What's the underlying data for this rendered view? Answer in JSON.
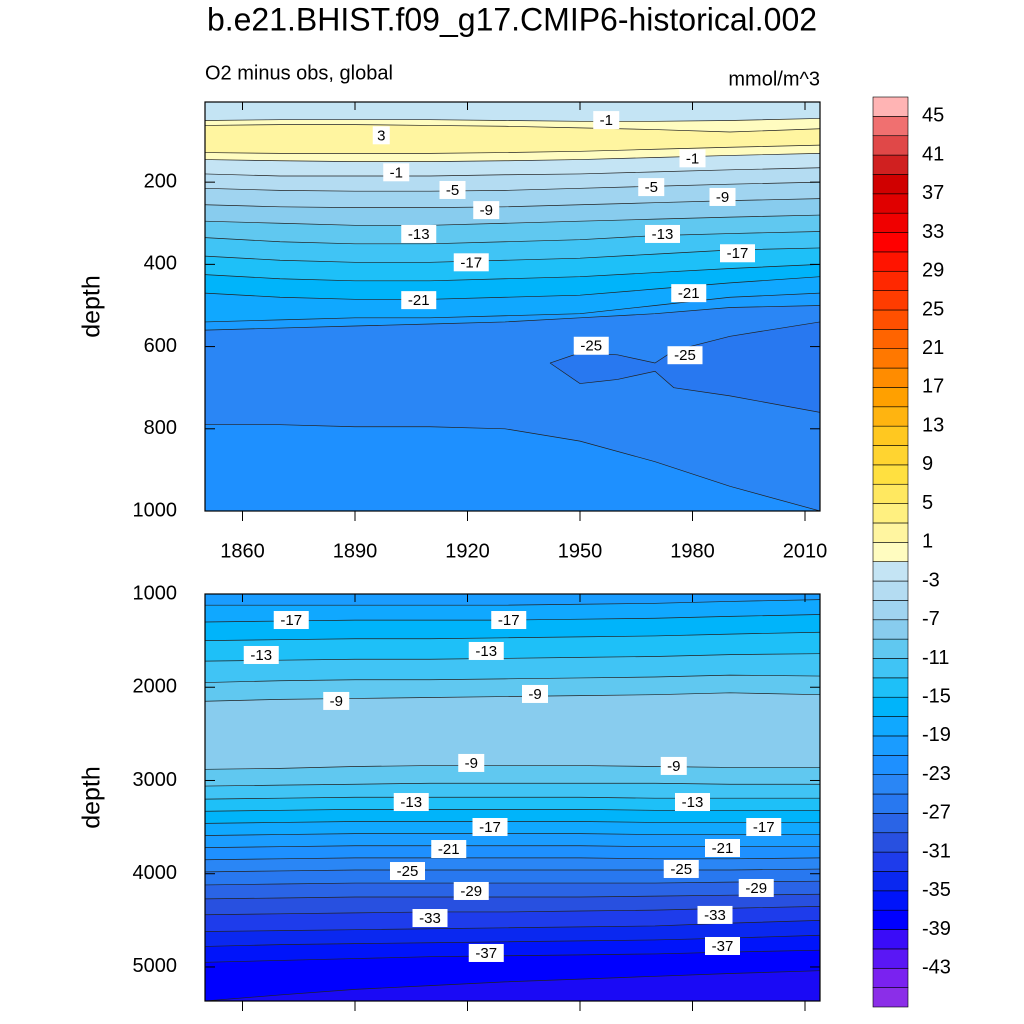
{
  "title": "b.e21.BHIST.f09_g17.CMIP6-historical.002",
  "colorbar": {
    "clim": [
      -47,
      47
    ],
    "colors": [
      "#8b2ee8",
      "#7a22f0",
      "#5a17f5",
      "#3a0cf8",
      "#0000ff",
      "#0014fa",
      "#0a28f0",
      "#1e3ceb",
      "#2850e0",
      "#2a64e6",
      "#2878f0",
      "#2a86f5",
      "#1e90ff",
      "#1a9cff",
      "#10a8ff",
      "#00b4fa",
      "#1ec0f8",
      "#40c4f5",
      "#60c8f0",
      "#88ccee",
      "#a0d4f0",
      "#b4dcf2",
      "#c4e4f4",
      "#fffcc0",
      "#fff5a0",
      "#fff080",
      "#ffe860",
      "#ffe040",
      "#ffd430",
      "#ffc820",
      "#ffb410",
      "#ffa000",
      "#ff8c00",
      "#ff7800",
      "#ff6400",
      "#ff5000",
      "#ff3c00",
      "#ff2800",
      "#ff1400",
      "#ff0000",
      "#f00000",
      "#e00000",
      "#d00000",
      "#d02020",
      "#e04848",
      "#f07070",
      "#ffb4b4"
    ],
    "ticks": [
      45,
      41,
      37,
      33,
      29,
      25,
      21,
      17,
      13,
      9,
      5,
      1,
      -3,
      -7,
      -11,
      -15,
      -19,
      -23,
      -27,
      -31,
      -35,
      -39,
      -43
    ]
  },
  "chart_data": [
    {
      "type": "contour",
      "subtitle": "O2 minus obs, global",
      "units": "mmol/m^3",
      "ylabel": "depth",
      "xlim": [
        1850,
        2014
      ],
      "ylim": [
        5,
        1000
      ],
      "y_reversed": true,
      "xticks": [
        1860,
        1890,
        1920,
        1950,
        1980,
        2010
      ],
      "yticks": [
        200,
        400,
        600,
        800,
        1000
      ],
      "show_xtick_labels": true,
      "x": [
        1850,
        1870,
        1890,
        1910,
        1930,
        1950,
        1970,
        1990,
        2014
      ],
      "regions": [
        {
          "color": "#c4e4f4",
          "top": [
            5,
            5,
            5,
            5,
            5,
            5,
            5,
            5,
            5
          ]
        },
        {
          "color": "#fffcc0",
          "top": [
            50,
            48,
            48,
            48,
            50,
            52,
            52,
            50,
            45
          ]
        },
        {
          "color": "#fff5a0",
          "top": [
            62,
            60,
            60,
            62,
            64,
            68,
            72,
            78,
            70
          ]
        },
        {
          "color": "#fffcc0",
          "top": [
            128,
            130,
            130,
            130,
            128,
            125,
            120,
            115,
            110
          ]
        },
        {
          "color": "#c4e4f4",
          "top": [
            145,
            148,
            150,
            150,
            148,
            145,
            140,
            135,
            130
          ]
        },
        {
          "color": "#b4dcf2",
          "top": [
            180,
            185,
            185,
            185,
            182,
            180,
            175,
            170,
            165
          ]
        },
        {
          "color": "#a0d4f0",
          "top": [
            215,
            220,
            222,
            222,
            220,
            215,
            210,
            205,
            200
          ]
        },
        {
          "color": "#88ccee",
          "top": [
            255,
            260,
            262,
            262,
            260,
            255,
            250,
            245,
            240
          ]
        },
        {
          "color": "#60c8f0",
          "top": [
            295,
            300,
            305,
            305,
            300,
            295,
            290,
            285,
            280
          ]
        },
        {
          "color": "#40c4f5",
          "top": [
            335,
            345,
            350,
            350,
            345,
            340,
            330,
            325,
            320
          ]
        },
        {
          "color": "#1ec0f8",
          "top": [
            380,
            390,
            395,
            395,
            390,
            385,
            375,
            365,
            360
          ]
        },
        {
          "color": "#00b4fa",
          "top": [
            425,
            435,
            440,
            440,
            435,
            430,
            420,
            410,
            400
          ]
        },
        {
          "color": "#10a8ff",
          "top": [
            470,
            480,
            485,
            485,
            480,
            475,
            460,
            445,
            430
          ]
        },
        {
          "color": "#1a9cff",
          "top": [
            540,
            535,
            530,
            530,
            525,
            520,
            500,
            480,
            470
          ]
        },
        {
          "color": "#2a86f5",
          "top": [
            560,
            555,
            550,
            545,
            540,
            530,
            520,
            505,
            500
          ]
        },
        {
          "color": "#1e90ff",
          "top": [
            790,
            790,
            795,
            795,
            800,
            830,
            880,
            940,
            1000
          ]
        },
        {
          "color": "#2878f0",
          "x": [
            1942,
            1950,
            1960,
            1970,
            1975,
            1990,
            2014
          ],
          "top": [
            640,
            615,
            620,
            640,
            610,
            575,
            540
          ],
          "bottom": [
            640,
            690,
            680,
            660,
            700,
            720,
            760
          ]
        }
      ],
      "contour_labels": [
        {
          "value": 3,
          "x": 1897,
          "y": 86
        },
        {
          "value": -1,
          "x": 1957,
          "y": 49
        },
        {
          "value": -1,
          "x": 1980,
          "y": 142
        },
        {
          "value": -1,
          "x": 1901,
          "y": 176
        },
        {
          "value": -5,
          "x": 1916,
          "y": 219
        },
        {
          "value": -5,
          "x": 1969,
          "y": 212
        },
        {
          "value": -9,
          "x": 1925,
          "y": 268
        },
        {
          "value": -9,
          "x": 1988,
          "y": 236
        },
        {
          "value": -13,
          "x": 1907,
          "y": 326
        },
        {
          "value": -13,
          "x": 1972,
          "y": 326
        },
        {
          "value": -17,
          "x": 1921,
          "y": 395
        },
        {
          "value": -17,
          "x": 1992,
          "y": 373
        },
        {
          "value": -21,
          "x": 1907,
          "y": 487
        },
        {
          "value": -21,
          "x": 1979,
          "y": 470
        },
        {
          "value": -25,
          "x": 1953,
          "y": 598
        },
        {
          "value": -25,
          "x": 1978,
          "y": 621
        }
      ]
    },
    {
      "type": "contour",
      "ylabel": "depth",
      "xlim": [
        1850,
        2014
      ],
      "ylim": [
        1000,
        5365
      ],
      "y_reversed": true,
      "xticks": [
        1860,
        1890,
        1920,
        1950,
        1980,
        2010
      ],
      "yticks": [
        1000,
        2000,
        3000,
        4000,
        5000
      ],
      "show_xtick_labels": false,
      "x": [
        1850,
        1870,
        1890,
        1910,
        1930,
        1950,
        1970,
        1990,
        2014
      ],
      "regions": [
        {
          "color": "#1a9cff",
          "top": [
            1000,
            1000,
            1000,
            1000,
            1000,
            1000,
            1000,
            1000,
            1000
          ]
        },
        {
          "color": "#10a8ff",
          "top": [
            1120,
            1120,
            1120,
            1120,
            1120,
            1110,
            1100,
            1080,
            1060
          ]
        },
        {
          "color": "#00b4fa",
          "top": [
            1300,
            1290,
            1280,
            1280,
            1280,
            1270,
            1260,
            1240,
            1220
          ]
        },
        {
          "color": "#1ec0f8",
          "top": [
            1500,
            1490,
            1480,
            1480,
            1470,
            1460,
            1450,
            1430,
            1410
          ]
        },
        {
          "color": "#40c4f5",
          "top": [
            1720,
            1710,
            1700,
            1700,
            1690,
            1680,
            1670,
            1650,
            1640
          ]
        },
        {
          "color": "#60c8f0",
          "top": [
            1950,
            1930,
            1920,
            1920,
            1910,
            1900,
            1890,
            1870,
            1880
          ]
        },
        {
          "color": "#88ccee",
          "top": [
            2150,
            2130,
            2120,
            2110,
            2100,
            2090,
            2080,
            2060,
            2080
          ]
        },
        {
          "color": "#60c8f0",
          "top": [
            2880,
            2870,
            2850,
            2840,
            2840,
            2840,
            2850,
            2860,
            2860
          ]
        },
        {
          "color": "#40c4f5",
          "top": [
            3060,
            3050,
            3040,
            3030,
            3030,
            3030,
            3030,
            3040,
            3040
          ]
        },
        {
          "color": "#1ec0f8",
          "top": [
            3200,
            3190,
            3180,
            3180,
            3180,
            3180,
            3190,
            3190,
            3190
          ]
        },
        {
          "color": "#00b4fa",
          "top": [
            3330,
            3320,
            3310,
            3310,
            3310,
            3310,
            3320,
            3320,
            3320
          ]
        },
        {
          "color": "#10a8ff",
          "top": [
            3460,
            3450,
            3440,
            3440,
            3440,
            3440,
            3450,
            3450,
            3450
          ]
        },
        {
          "color": "#1a9cff",
          "top": [
            3590,
            3580,
            3570,
            3570,
            3570,
            3570,
            3580,
            3580,
            3580
          ]
        },
        {
          "color": "#1e90ff",
          "top": [
            3720,
            3710,
            3700,
            3700,
            3700,
            3700,
            3710,
            3710,
            3710
          ]
        },
        {
          "color": "#2a86f5",
          "top": [
            3850,
            3840,
            3830,
            3830,
            3830,
            3830,
            3840,
            3840,
            3830
          ]
        },
        {
          "color": "#2878f0",
          "top": [
            3980,
            3970,
            3960,
            3960,
            3960,
            3960,
            3960,
            3960,
            3950
          ]
        },
        {
          "color": "#2a64e6",
          "top": [
            4120,
            4110,
            4100,
            4100,
            4100,
            4100,
            4100,
            4090,
            4080
          ]
        },
        {
          "color": "#2850e0",
          "top": [
            4270,
            4260,
            4250,
            4250,
            4250,
            4250,
            4240,
            4230,
            4220
          ]
        },
        {
          "color": "#1e3ceb",
          "top": [
            4440,
            4430,
            4420,
            4410,
            4410,
            4400,
            4390,
            4370,
            4350
          ]
        },
        {
          "color": "#0a28f0",
          "top": [
            4620,
            4610,
            4600,
            4590,
            4580,
            4570,
            4560,
            4530,
            4500
          ]
        },
        {
          "color": "#0014fa",
          "top": [
            4780,
            4760,
            4750,
            4740,
            4730,
            4720,
            4710,
            4690,
            4660
          ]
        },
        {
          "color": "#0000ff",
          "top": [
            4950,
            4930,
            4910,
            4890,
            4880,
            4870,
            4860,
            4840,
            4820
          ]
        },
        {
          "color": "#1a0af5",
          "top": [
            5365,
            5300,
            5240,
            5200,
            5160,
            5130,
            5100,
            5070,
            5040
          ]
        }
      ],
      "contour_labels": [
        {
          "value": -17,
          "x": 1873,
          "y": 1279
        },
        {
          "value": -17,
          "x": 1931,
          "y": 1279
        },
        {
          "value": -13,
          "x": 1865,
          "y": 1654
        },
        {
          "value": -13,
          "x": 1925,
          "y": 1611
        },
        {
          "value": -9,
          "x": 1885,
          "y": 2147
        },
        {
          "value": -9,
          "x": 1938,
          "y": 2072
        },
        {
          "value": -9,
          "x": 1921,
          "y": 2812
        },
        {
          "value": -9,
          "x": 1975,
          "y": 2844
        },
        {
          "value": -13,
          "x": 1905,
          "y": 3231
        },
        {
          "value": -13,
          "x": 1980,
          "y": 3231
        },
        {
          "value": -17,
          "x": 1926,
          "y": 3499
        },
        {
          "value": -17,
          "x": 1999,
          "y": 3499
        },
        {
          "value": -21,
          "x": 1915,
          "y": 3735
        },
        {
          "value": -21,
          "x": 1988,
          "y": 3724
        },
        {
          "value": -25,
          "x": 1904,
          "y": 3971
        },
        {
          "value": -25,
          "x": 1977,
          "y": 3949
        },
        {
          "value": -29,
          "x": 1921,
          "y": 4185
        },
        {
          "value": -29,
          "x": 1997,
          "y": 4153
        },
        {
          "value": -33,
          "x": 1910,
          "y": 4475
        },
        {
          "value": -33,
          "x": 1986,
          "y": 4442
        },
        {
          "value": -37,
          "x": 1925,
          "y": 4850
        },
        {
          "value": -37,
          "x": 1988,
          "y": 4775
        }
      ]
    }
  ]
}
